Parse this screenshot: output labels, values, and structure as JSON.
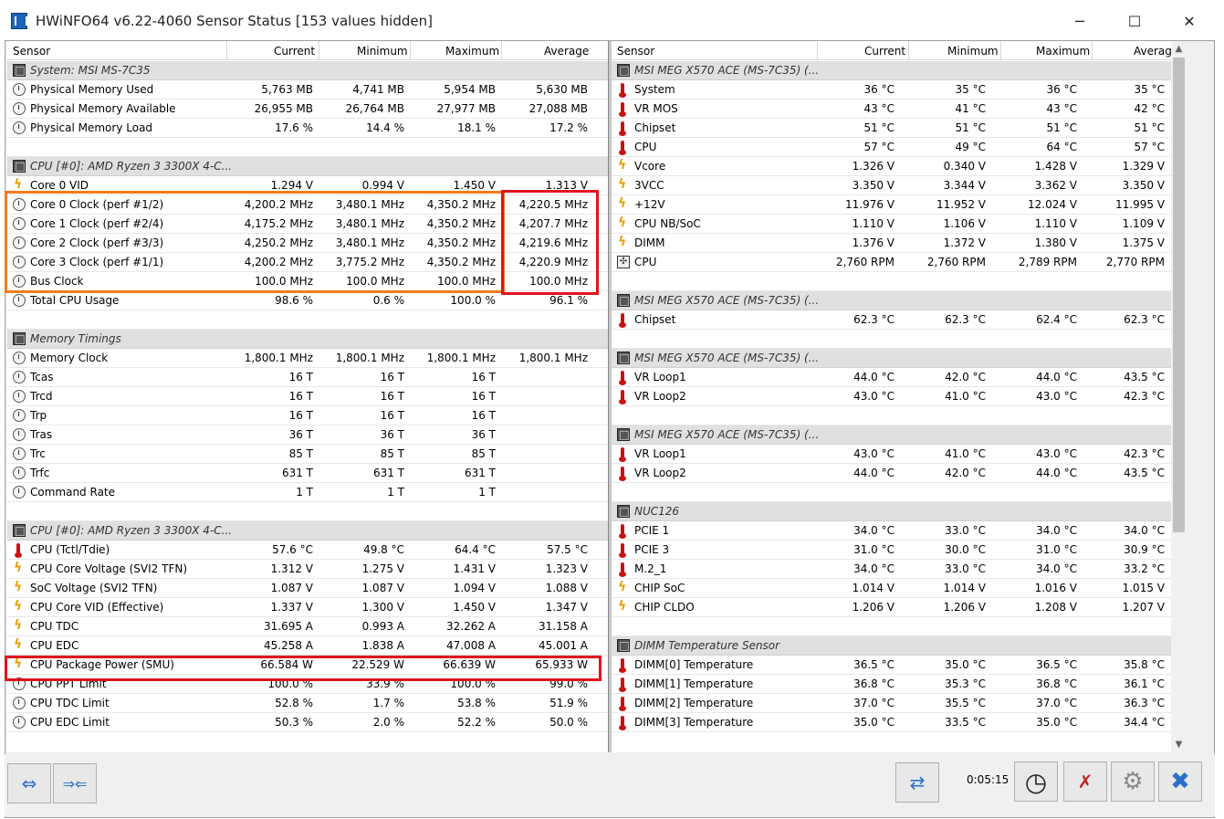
{
  "window": {
    "title": "HWiNFO64 v6.22-4060 Sensor Status [153 values hidden]",
    "minimize_glyph": "─",
    "maximize_glyph": "☐",
    "close_glyph": "✕"
  },
  "columns": {
    "sensor": "Sensor",
    "current": "Current",
    "minimum": "Minimum",
    "maximum": "Maximum",
    "average": "Average"
  },
  "left_rows": [
    {
      "type": "group",
      "icon": "chip",
      "name": "System: MSI MS-7C35"
    },
    {
      "type": "row",
      "icon": "clock",
      "name": "Physical Memory Used",
      "cur": "5,763 MB",
      "min": "4,741 MB",
      "max": "5,954 MB",
      "avg": "5,630 MB"
    },
    {
      "type": "row",
      "icon": "clock",
      "name": "Physical Memory Available",
      "cur": "26,955 MB",
      "min": "26,764 MB",
      "max": "27,977 MB",
      "avg": "27,088 MB"
    },
    {
      "type": "row",
      "icon": "clock",
      "name": "Physical Memory Load",
      "cur": "17.6 %",
      "min": "14.4 %",
      "max": "18.1 %",
      "avg": "17.2 %"
    },
    {
      "type": "blank"
    },
    {
      "type": "group",
      "icon": "chip",
      "name": "CPU [#0]: AMD Ryzen 3 3300X 4-C..."
    },
    {
      "type": "row",
      "icon": "bolt",
      "name": "Core 0 VID",
      "cur": "1.294 V",
      "min": "0.994 V",
      "max": "1.450 V",
      "avg": "1.313 V"
    },
    {
      "type": "row",
      "icon": "clock",
      "name": "Core 0 Clock (perf #1/2)",
      "cur": "4,200.2 MHz",
      "min": "3,480.1 MHz",
      "max": "4,350.2 MHz",
      "avg": "4,220.5 MHz"
    },
    {
      "type": "row",
      "icon": "clock",
      "name": "Core 1 Clock (perf #2/4)",
      "cur": "4,175.2 MHz",
      "min": "3,480.1 MHz",
      "max": "4,350.2 MHz",
      "avg": "4,207.7 MHz"
    },
    {
      "type": "row",
      "icon": "clock",
      "name": "Core 2 Clock (perf #3/3)",
      "cur": "4,250.2 MHz",
      "min": "3,480.1 MHz",
      "max": "4,350.2 MHz",
      "avg": "4,219.6 MHz"
    },
    {
      "type": "row",
      "icon": "clock",
      "name": "Core 3 Clock (perf #1/1)",
      "cur": "4,200.2 MHz",
      "min": "3,775.2 MHz",
      "max": "4,350.2 MHz",
      "avg": "4,220.9 MHz"
    },
    {
      "type": "row",
      "icon": "clock",
      "name": "Bus Clock",
      "cur": "100.0 MHz",
      "min": "100.0 MHz",
      "max": "100.0 MHz",
      "avg": "100.0 MHz"
    },
    {
      "type": "row",
      "icon": "clock",
      "name": "Total CPU Usage",
      "cur": "98.6 %",
      "min": "0.6 %",
      "max": "100.0 %",
      "avg": "96.1 %"
    },
    {
      "type": "blank"
    },
    {
      "type": "group",
      "icon": "chip",
      "name": "Memory Timings"
    },
    {
      "type": "row",
      "icon": "clock",
      "name": "Memory Clock",
      "cur": "1,800.1 MHz",
      "min": "1,800.1 MHz",
      "max": "1,800.1 MHz",
      "avg": "1,800.1 MHz"
    },
    {
      "type": "row",
      "icon": "clock",
      "name": "Tcas",
      "cur": "16 T",
      "min": "16 T",
      "max": "16 T",
      "avg": ""
    },
    {
      "type": "row",
      "icon": "clock",
      "name": "Trcd",
      "cur": "16 T",
      "min": "16 T",
      "max": "16 T",
      "avg": ""
    },
    {
      "type": "row",
      "icon": "clock",
      "name": "Trp",
      "cur": "16 T",
      "min": "16 T",
      "max": "16 T",
      "avg": ""
    },
    {
      "type": "row",
      "icon": "clock",
      "name": "Tras",
      "cur": "36 T",
      "min": "36 T",
      "max": "36 T",
      "avg": ""
    },
    {
      "type": "row",
      "icon": "clock",
      "name": "Trc",
      "cur": "85 T",
      "min": "85 T",
      "max": "85 T",
      "avg": ""
    },
    {
      "type": "row",
      "icon": "clock",
      "name": "Trfc",
      "cur": "631 T",
      "min": "631 T",
      "max": "631 T",
      "avg": ""
    },
    {
      "type": "row",
      "icon": "clock",
      "name": "Command Rate",
      "cur": "1 T",
      "min": "1 T",
      "max": "1 T",
      "avg": ""
    },
    {
      "type": "blank"
    },
    {
      "type": "group",
      "icon": "chip",
      "name": "CPU [#0]: AMD Ryzen 3 3300X 4-C..."
    },
    {
      "type": "row",
      "icon": "temp",
      "name": "CPU (Tctl/Tdie)",
      "cur": "57.6 °C",
      "min": "49.8 °C",
      "max": "64.4 °C",
      "avg": "57.5 °C"
    },
    {
      "type": "row",
      "icon": "bolt",
      "name": "CPU Core Voltage (SVI2 TFN)",
      "cur": "1.312 V",
      "min": "1.275 V",
      "max": "1.431 V",
      "avg": "1.323 V"
    },
    {
      "type": "row",
      "icon": "bolt",
      "name": "SoC Voltage (SVI2 TFN)",
      "cur": "1.087 V",
      "min": "1.087 V",
      "max": "1.094 V",
      "avg": "1.088 V"
    },
    {
      "type": "row",
      "icon": "bolt",
      "name": "CPU Core VID (Effective)",
      "cur": "1.337 V",
      "min": "1.300 V",
      "max": "1.450 V",
      "avg": "1.347 V"
    },
    {
      "type": "row",
      "icon": "bolt",
      "name": "CPU TDC",
      "cur": "31.695 A",
      "min": "0.993 A",
      "max": "32.262 A",
      "avg": "31.158 A"
    },
    {
      "type": "row",
      "icon": "bolt",
      "name": "CPU EDC",
      "cur": "45.258 A",
      "min": "1.838 A",
      "max": "47.008 A",
      "avg": "45.001 A"
    },
    {
      "type": "row",
      "icon": "bolt",
      "name": "CPU Package Power (SMU)",
      "cur": "66.584 W",
      "min": "22.529 W",
      "max": "66.639 W",
      "avg": "65.933 W"
    },
    {
      "type": "row",
      "icon": "clock",
      "name": "CPU PPT Limit",
      "cur": "100.0 %",
      "min": "33.9 %",
      "max": "100.0 %",
      "avg": "99.0 %"
    },
    {
      "type": "row",
      "icon": "clock",
      "name": "CPU TDC Limit",
      "cur": "52.8 %",
      "min": "1.7 %",
      "max": "53.8 %",
      "avg": "51.9 %"
    },
    {
      "type": "row",
      "icon": "clock",
      "name": "CPU EDC Limit",
      "cur": "50.3 %",
      "min": "2.0 %",
      "max": "52.2 %",
      "avg": "50.0 %"
    }
  ],
  "right_rows": [
    {
      "type": "group",
      "icon": "chip",
      "name": "MSI MEG X570 ACE (MS-7C35) (..."
    },
    {
      "type": "row",
      "icon": "temp",
      "name": "System",
      "cur": "36 °C",
      "min": "35 °C",
      "max": "36 °C",
      "avg": "35 °C"
    },
    {
      "type": "row",
      "icon": "temp",
      "name": "VR MOS",
      "cur": "43 °C",
      "min": "41 °C",
      "max": "43 °C",
      "avg": "42 °C"
    },
    {
      "type": "row",
      "icon": "temp",
      "name": "Chipset",
      "cur": "51 °C",
      "min": "51 °C",
      "max": "51 °C",
      "avg": "51 °C"
    },
    {
      "type": "row",
      "icon": "temp",
      "name": "CPU",
      "cur": "57 °C",
      "min": "49 °C",
      "max": "64 °C",
      "avg": "57 °C"
    },
    {
      "type": "row",
      "icon": "bolt",
      "name": "Vcore",
      "cur": "1.326 V",
      "min": "0.340 V",
      "max": "1.428 V",
      "avg": "1.329 V"
    },
    {
      "type": "row",
      "icon": "bolt",
      "name": "3VCC",
      "cur": "3.350 V",
      "min": "3.344 V",
      "max": "3.362 V",
      "avg": "3.350 V"
    },
    {
      "type": "row",
      "icon": "bolt",
      "name": "+12V",
      "cur": "11.976 V",
      "min": "11.952 V",
      "max": "12.024 V",
      "avg": "11.995 V"
    },
    {
      "type": "row",
      "icon": "bolt",
      "name": "CPU NB/SoC",
      "cur": "1.110 V",
      "min": "1.106 V",
      "max": "1.110 V",
      "avg": "1.109 V"
    },
    {
      "type": "row",
      "icon": "bolt",
      "name": "DIMM",
      "cur": "1.376 V",
      "min": "1.372 V",
      "max": "1.380 V",
      "avg": "1.375 V"
    },
    {
      "type": "row",
      "icon": "fan",
      "name": "CPU",
      "cur": "2,760 RPM",
      "min": "2,760 RPM",
      "max": "2,789 RPM",
      "avg": "2,770 RPM"
    },
    {
      "type": "blank"
    },
    {
      "type": "group",
      "icon": "chip",
      "name": "MSI MEG X570 ACE (MS-7C35) (..."
    },
    {
      "type": "row",
      "icon": "temp",
      "name": "Chipset",
      "cur": "62.3 °C",
      "min": "62.3 °C",
      "max": "62.4 °C",
      "avg": "62.3 °C"
    },
    {
      "type": "blank"
    },
    {
      "type": "group",
      "icon": "chip",
      "name": "MSI MEG X570 ACE (MS-7C35) (..."
    },
    {
      "type": "row",
      "icon": "temp",
      "name": "VR Loop1",
      "cur": "44.0 °C",
      "min": "42.0 °C",
      "max": "44.0 °C",
      "avg": "43.5 °C"
    },
    {
      "type": "row",
      "icon": "temp",
      "name": "VR Loop2",
      "cur": "43.0 °C",
      "min": "41.0 °C",
      "max": "43.0 °C",
      "avg": "42.3 °C"
    },
    {
      "type": "blank"
    },
    {
      "type": "group",
      "icon": "chip",
      "name": "MSI MEG X570 ACE (MS-7C35) (..."
    },
    {
      "type": "row",
      "icon": "temp",
      "name": "VR Loop1",
      "cur": "43.0 °C",
      "min": "41.0 °C",
      "max": "43.0 °C",
      "avg": "42.3 °C"
    },
    {
      "type": "row",
      "icon": "temp",
      "name": "VR Loop2",
      "cur": "44.0 °C",
      "min": "42.0 °C",
      "max": "44.0 °C",
      "avg": "43.5 °C"
    },
    {
      "type": "blank"
    },
    {
      "type": "group",
      "icon": "chip",
      "name": "NUC126"
    },
    {
      "type": "row",
      "icon": "temp",
      "name": "PCIE 1",
      "cur": "34.0 °C",
      "min": "33.0 °C",
      "max": "34.0 °C",
      "avg": "34.0 °C"
    },
    {
      "type": "row",
      "icon": "temp",
      "name": "PCIE 3",
      "cur": "31.0 °C",
      "min": "30.0 °C",
      "max": "31.0 °C",
      "avg": "30.9 °C"
    },
    {
      "type": "row",
      "icon": "temp",
      "name": "M.2_1",
      "cur": "34.0 °C",
      "min": "33.0 °C",
      "max": "34.0 °C",
      "avg": "33.2 °C"
    },
    {
      "type": "row",
      "icon": "bolt",
      "name": "CHIP SoC",
      "cur": "1.014 V",
      "min": "1.014 V",
      "max": "1.016 V",
      "avg": "1.015 V"
    },
    {
      "type": "row",
      "icon": "bolt",
      "name": "CHIP CLDO",
      "cur": "1.206 V",
      "min": "1.206 V",
      "max": "1.208 V",
      "avg": "1.207 V"
    },
    {
      "type": "blank"
    },
    {
      "type": "group",
      "icon": "chip",
      "name": "DIMM Temperature Sensor"
    },
    {
      "type": "row",
      "icon": "temp",
      "name": "DIMM[0] Temperature",
      "cur": "36.5 °C",
      "min": "35.0 °C",
      "max": "36.5 °C",
      "avg": "35.8 °C"
    },
    {
      "type": "row",
      "icon": "temp",
      "name": "DIMM[1] Temperature",
      "cur": "36.8 °C",
      "min": "35.3 °C",
      "max": "36.8 °C",
      "avg": "36.1 °C"
    },
    {
      "type": "row",
      "icon": "temp",
      "name": "DIMM[2] Temperature",
      "cur": "37.0 °C",
      "min": "35.5 °C",
      "max": "37.0 °C",
      "avg": "36.3 °C"
    },
    {
      "type": "row",
      "icon": "temp",
      "name": "DIMM[3] Temperature",
      "cur": "35.0 °C",
      "min": "33.5 °C",
      "max": "35.0 °C",
      "avg": "34.4 °C"
    }
  ],
  "toolbar": {
    "timer": "0:05:15",
    "collapse_glyph": "⇔",
    "expand_glyph": "⇒⇐",
    "network_glyph": "⇄",
    "clock_glyph": "◷",
    "reset_glyph": "✗",
    "settings_glyph": "⚙",
    "close_glyph": "✖"
  },
  "colors": {
    "highlight_orange": "#f07c1c",
    "highlight_red": "#e0141e"
  }
}
